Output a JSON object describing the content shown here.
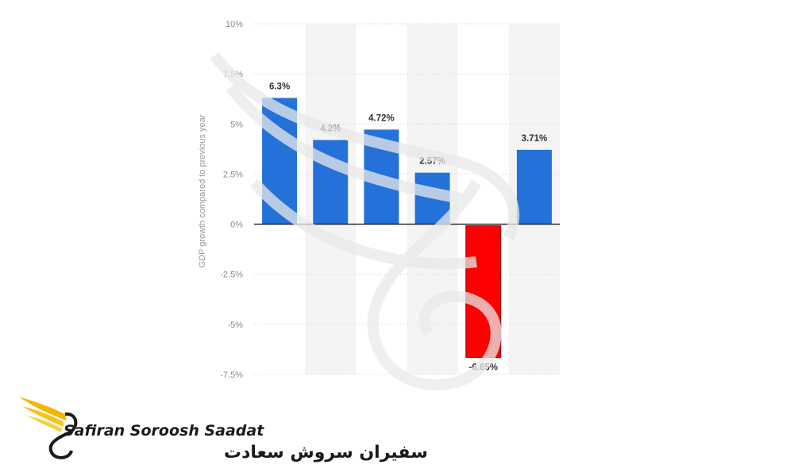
{
  "chart_data": {
    "type": "bar",
    "ylabel": "GDP growth compared to previous year",
    "ylim": [
      -7.5,
      10
    ],
    "yticks": [
      10,
      7.5,
      5,
      2.5,
      0,
      -2.5,
      -5,
      -7.5
    ],
    "ytick_labels": [
      "10%",
      "7.5%",
      "5%",
      "2.5%",
      "0%",
      "-2.5%",
      "-5%",
      "-7.5%"
    ],
    "categories": [
      "",
      "",
      "",
      "",
      "",
      ""
    ],
    "values": [
      6.3,
      4.2,
      4.72,
      2.57,
      -6.65,
      3.71
    ],
    "value_labels": [
      "6.3%",
      "4.2%",
      "4.72%",
      "2.57%",
      "-6.65%",
      "3.71%"
    ],
    "colors": {
      "positive": "#2472d9",
      "negative": "#ff0000",
      "band": "#f4f4f4",
      "grid": "#e2e2e2"
    },
    "grid": true
  },
  "watermark": {
    "brand_en": "Safiran Soroosh Saadat",
    "brand_fa": "سفیران سروش سعادت",
    "icon": "golden-wing-swan-logo"
  }
}
